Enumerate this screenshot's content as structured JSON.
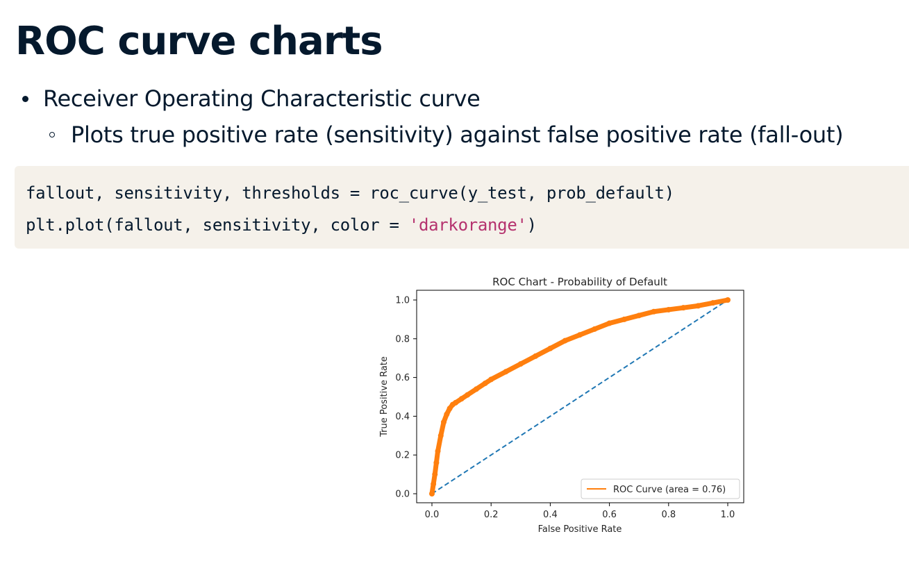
{
  "slide": {
    "title": "ROC curve charts",
    "bullet_1": "Receiver Operating Characteristic curve",
    "bullet_2": "Plots true positive rate (sensitivity) against false positive rate (fall-out)"
  },
  "code": {
    "line_1": "fallout, sensitivity, thresholds = roc_curve(y_test, prob_default)",
    "line_2_prefix": "plt.plot(fallout, sensitivity, color = ",
    "line_2_string": "'darkorange'",
    "line_2_suffix": ")"
  },
  "chart_data": {
    "type": "line",
    "title": "ROC Chart - Probability of Default",
    "xlabel": "False Positive Rate",
    "ylabel": "True Positive Rate",
    "xlim": [
      0,
      1
    ],
    "ylim": [
      0,
      1
    ],
    "xticks": [
      "0.0",
      "0.2",
      "0.4",
      "0.6",
      "0.8",
      "1.0"
    ],
    "yticks": [
      "0.0",
      "0.2",
      "0.4",
      "0.6",
      "0.8",
      "1.0"
    ],
    "grid": false,
    "legend_position": "bottom-right",
    "series": [
      {
        "name": "ROC Curve (area = 0.76)",
        "color": "#ff7f0e",
        "marker": "dot",
        "x": [
          0.0,
          0.005,
          0.01,
          0.015,
          0.02,
          0.03,
          0.04,
          0.05,
          0.06,
          0.07,
          0.08,
          0.1,
          0.12,
          0.15,
          0.18,
          0.2,
          0.25,
          0.3,
          0.35,
          0.4,
          0.45,
          0.5,
          0.55,
          0.6,
          0.65,
          0.7,
          0.75,
          0.8,
          0.85,
          0.9,
          0.95,
          1.0
        ],
        "y": [
          0.0,
          0.05,
          0.1,
          0.16,
          0.22,
          0.3,
          0.37,
          0.41,
          0.44,
          0.46,
          0.47,
          0.49,
          0.51,
          0.54,
          0.57,
          0.59,
          0.63,
          0.67,
          0.71,
          0.75,
          0.79,
          0.82,
          0.85,
          0.88,
          0.9,
          0.92,
          0.94,
          0.95,
          0.96,
          0.97,
          0.985,
          1.0
        ]
      },
      {
        "color": "#1f77b4",
        "style": "dashed",
        "x": [
          0,
          1
        ],
        "y": [
          0,
          1
        ]
      }
    ]
  }
}
